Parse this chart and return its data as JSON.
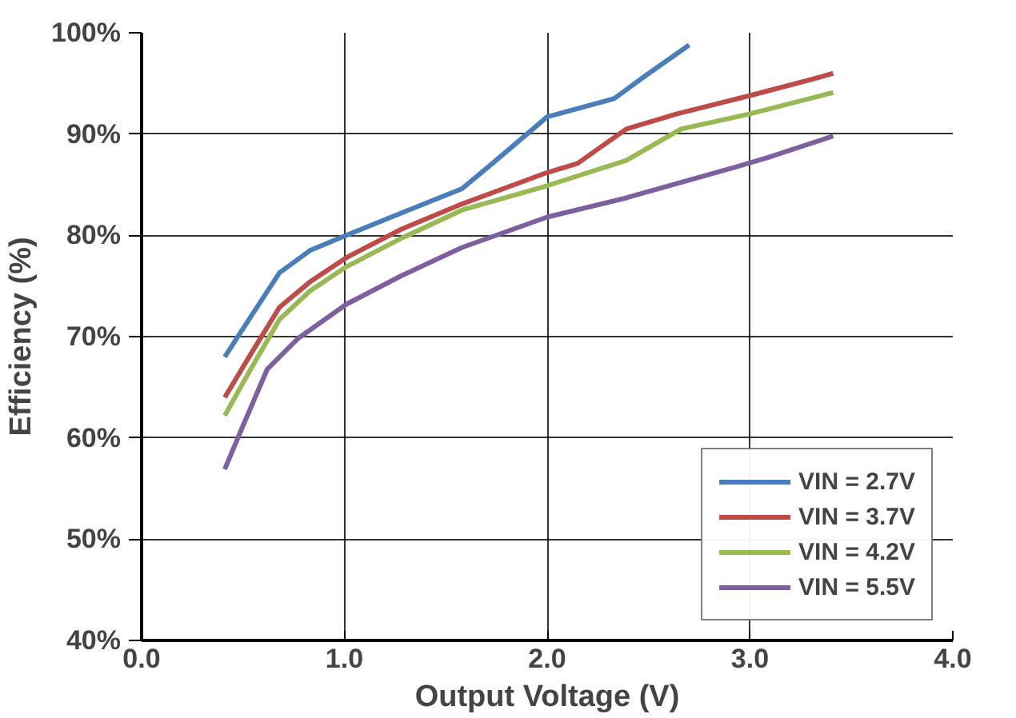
{
  "chart_data": {
    "type": "line",
    "xlabel": "Output Voltage (V)",
    "ylabel": "Efficiency (%)",
    "xlim": [
      0,
      4
    ],
    "xticks": [
      {
        "value": 0,
        "label": "0.0"
      },
      {
        "value": 1,
        "label": "1.0"
      },
      {
        "value": 2,
        "label": "2.0"
      },
      {
        "value": 3,
        "label": "3.0"
      },
      {
        "value": 4,
        "label": "4.0"
      }
    ],
    "ylim": [
      40,
      100
    ],
    "yticks": [
      {
        "value": 40,
        "label": "40%"
      },
      {
        "value": 50,
        "label": "50%"
      },
      {
        "value": 60,
        "label": "60%"
      },
      {
        "value": 70,
        "label": "70%"
      },
      {
        "value": 80,
        "label": "80%"
      },
      {
        "value": 90,
        "label": "90%"
      },
      {
        "value": 100,
        "label": "100%"
      }
    ],
    "grid": true,
    "legend": "bottom right",
    "marker": "none",
    "line_style": "solid",
    "series": [
      {
        "name": "VIN = 2.7V",
        "color": "#4a7ebb",
        "x": [
          0.41,
          0.53,
          0.68,
          0.83,
          1.01,
          1.28,
          1.43,
          1.58,
          1.73,
          2.0,
          2.33,
          2.48,
          2.7
        ],
        "values": [
          68.0,
          71.7,
          76.3,
          78.5,
          80.0,
          82.2,
          83.4,
          84.6,
          87.1,
          91.7,
          93.5,
          95.7,
          98.8
        ]
      },
      {
        "name": "VIN = 3.7V",
        "color": "#be4b48",
        "x": [
          0.41,
          0.53,
          0.68,
          0.83,
          1.01,
          1.28,
          1.58,
          2.0,
          2.15,
          2.39,
          2.64,
          3.0,
          3.36,
          3.41
        ],
        "values": [
          64.0,
          68.0,
          72.9,
          75.4,
          77.8,
          80.6,
          83.1,
          86.2,
          87.1,
          90.5,
          92.0,
          93.8,
          95.7,
          96.0
        ]
      },
      {
        "name": "VIN = 4.2V",
        "color": "#98b954",
        "x": [
          0.41,
          0.53,
          0.68,
          0.83,
          1.01,
          1.28,
          1.58,
          2.0,
          2.39,
          2.66,
          3.0,
          3.41
        ],
        "values": [
          62.2,
          66.5,
          71.7,
          74.5,
          76.9,
          79.7,
          82.5,
          84.9,
          87.4,
          90.5,
          92.0,
          94.1
        ]
      },
      {
        "name": "VIN = 5.5V",
        "color": "#7d60a0",
        "x": [
          0.41,
          0.5,
          0.62,
          0.77,
          1.01,
          1.28,
          1.58,
          2.0,
          2.39,
          2.94,
          3.09,
          3.41
        ],
        "values": [
          56.9,
          61.2,
          66.8,
          69.8,
          73.2,
          76.0,
          78.8,
          81.8,
          83.7,
          86.8,
          87.7,
          89.8
        ]
      }
    ]
  }
}
